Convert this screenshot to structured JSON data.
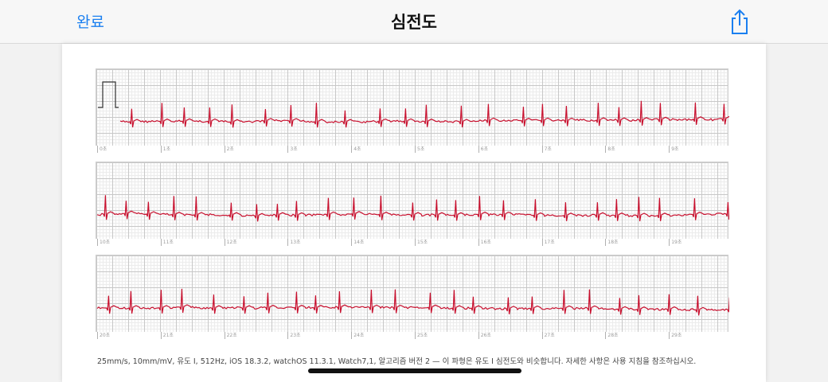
{
  "navbar": {
    "done_label": "완료",
    "title": "심전도",
    "share_icon": "share-icon"
  },
  "strips": [
    {
      "ticks": [
        "0초",
        "1초",
        "2초",
        "3초",
        "4초",
        "5초",
        "6초",
        "7초",
        "8초",
        "9초"
      ],
      "calibration_pulse": true
    },
    {
      "ticks": [
        "10초",
        "11초",
        "12초",
        "13초",
        "14초",
        "15초",
        "16초",
        "17초",
        "18초",
        "19초"
      ],
      "calibration_pulse": false
    },
    {
      "ticks": [
        "20초",
        "21초",
        "22초",
        "23초",
        "24초",
        "25초",
        "26초",
        "27초",
        "28초",
        "29초"
      ],
      "calibration_pulse": false
    }
  ],
  "trace_color": "#c8102e",
  "footer_text": "25mm/s, 10mm/mV, 유도 I, 512Hz, iOS 18.3.2, watchOS 11.3.1, Watch7,1, 알고리즘 버전 2 — 이 파형은 유도 I 심전도와 비슷합니다. 자세한 사항은 사용 지침을 참조하십시오."
}
